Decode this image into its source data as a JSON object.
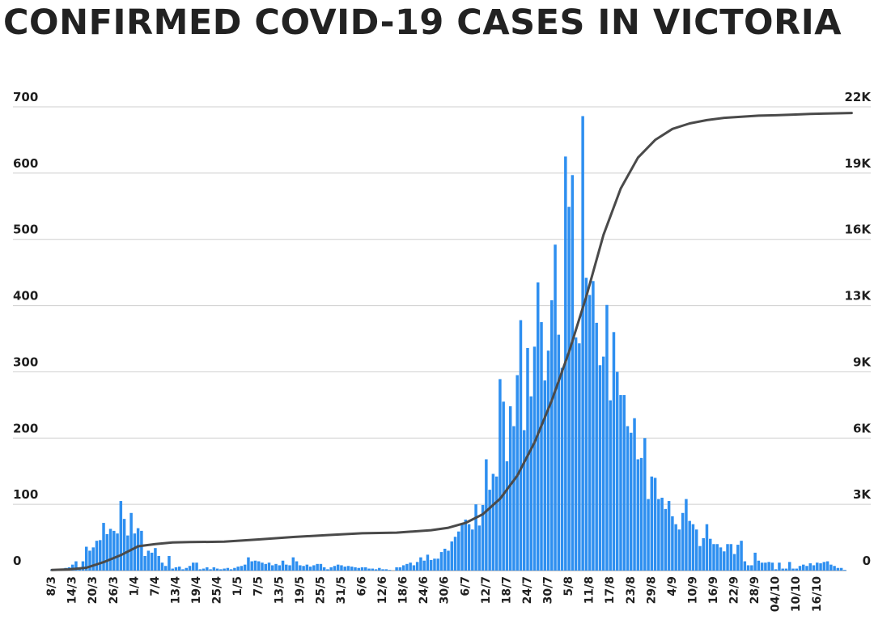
{
  "title": "CONFIRMED COVID-19 CASES IN VICTORIA",
  "colors": {
    "bar": "#2e8ff0",
    "line": "#4a4a4a",
    "grid": "#cfcfcf"
  },
  "chart_data": {
    "type": "bar",
    "title": "CONFIRMED COVID-19 CASES IN VICTORIA",
    "y_left": {
      "range": [
        0,
        700
      ],
      "ticks": [
        "0",
        "100",
        "200",
        "300",
        "400",
        "500",
        "600",
        "700"
      ]
    },
    "y_right": {
      "range": [
        0,
        21000
      ],
      "ticks": [
        "0",
        "3K",
        "6K",
        "9K",
        "13K",
        "16K",
        "19K",
        "22K"
      ]
    },
    "x_tick_labels": [
      "8/3",
      "14/3",
      "20/3",
      "26/3",
      "1/4",
      "7/4",
      "13/4",
      "19/4",
      "25/4",
      "1/5",
      "7/5",
      "13/5",
      "19/5",
      "25/5",
      "31/5",
      "6/6",
      "12/6",
      "18/6",
      "24/6",
      "30/6",
      "6/7",
      "12/7",
      "18/7",
      "24/7",
      "30/7",
      "5/8",
      "11/8",
      "17/8",
      "23/8",
      "29/8",
      "4/9",
      "10/9",
      "16/9",
      "22/9",
      "28/9",
      "04/10",
      "10/10",
      "16/10"
    ],
    "grid": true,
    "series": [
      {
        "kind": "bar",
        "axis": "left",
        "values": [
          2,
          2,
          2,
          2,
          4,
          5,
          9,
          14,
          4,
          14,
          36,
          30,
          35,
          45,
          46,
          72,
          55,
          63,
          60,
          56,
          105,
          78,
          53,
          87,
          56,
          64,
          60,
          22,
          30,
          27,
          34,
          22,
          12,
          7,
          22,
          3,
          5,
          6,
          2,
          4,
          7,
          12,
          12,
          2,
          3,
          5,
          2,
          5,
          3,
          2,
          3,
          4,
          2,
          4,
          6,
          7,
          9,
          20,
          14,
          15,
          14,
          12,
          10,
          12,
          8,
          10,
          8,
          15,
          9,
          8,
          20,
          14,
          8,
          7,
          9,
          6,
          8,
          10,
          10,
          5,
          2,
          5,
          7,
          9,
          8,
          6,
          7,
          6,
          5,
          4,
          5,
          5,
          3,
          3,
          2,
          4,
          2,
          2,
          1,
          0,
          5,
          5,
          8,
          10,
          12,
          8,
          13,
          20,
          15,
          24,
          16,
          18,
          18,
          28,
          33,
          30,
          44,
          51,
          59,
          70,
          77,
          70,
          62,
          100,
          68,
          99,
          168,
          122,
          146,
          142,
          289,
          255,
          165,
          248,
          218,
          295,
          378,
          212,
          336,
          263,
          338,
          435,
          375,
          287,
          332,
          408,
          492,
          356,
          306,
          625,
          549,
          597,
          352,
          343,
          686,
          442,
          416,
          437,
          374,
          310,
          323,
          401,
          257,
          360,
          300,
          265,
          265,
          218,
          208,
          230,
          168,
          170,
          200,
          108,
          142,
          140,
          108,
          110,
          93,
          105,
          82,
          70,
          62,
          87,
          108,
          75,
          70,
          62,
          37,
          49,
          70,
          48,
          40,
          40,
          35,
          29,
          40,
          40,
          25,
          39,
          45,
          14,
          8,
          8,
          27,
          15,
          12,
          12,
          13,
          12,
          2,
          12,
          3,
          3,
          13,
          3,
          3,
          7,
          9,
          7,
          11,
          8,
          12,
          11,
          13,
          14,
          9,
          7,
          4,
          4,
          1
        ]
      },
      {
        "kind": "line",
        "axis": "right",
        "name": "",
        "x_index": [
          0,
          5,
          10,
          15,
          20,
          25,
          30,
          35,
          40,
          50,
          60,
          70,
          80,
          90,
          100,
          110,
          115,
          120,
          125,
          130,
          135,
          140,
          145,
          150,
          155,
          160,
          165,
          170,
          175,
          180,
          185,
          190,
          195,
          200,
          205,
          210,
          215,
          220,
          225,
          232
        ],
        "values": [
          30,
          55,
          130,
          380,
          700,
          1100,
          1200,
          1270,
          1290,
          1310,
          1410,
          1520,
          1610,
          1690,
          1720,
          1830,
          1940,
          2160,
          2550,
          3250,
          4300,
          5800,
          7700,
          9900,
          12400,
          15200,
          17300,
          18700,
          19500,
          20000,
          20250,
          20400,
          20500,
          20550,
          20600,
          20620,
          20650,
          20680,
          20700,
          20720
        ]
      }
    ]
  }
}
